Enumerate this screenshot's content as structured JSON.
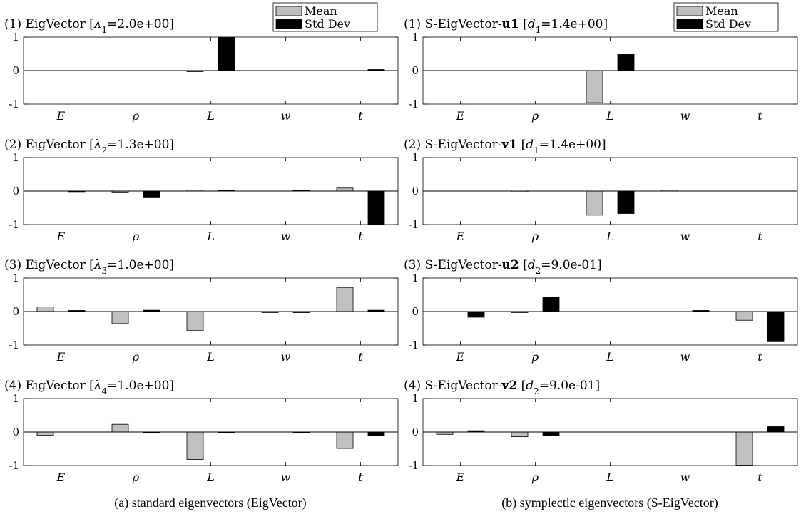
{
  "legend": {
    "mean_label": "Mean",
    "std_label": "Std Dev",
    "mean_color": "#c0c0c0",
    "std_color": "#000000"
  },
  "captions": {
    "left": "(a) standard eigenvectors (EigVector)",
    "right": "(b) symplectic eigenvectors (S-EigVector)"
  },
  "chart_data": [
    {
      "type": "bar",
      "column": 0,
      "row": 0,
      "title_parts": [
        {
          "t": "(1) EigVector ["
        },
        {
          "t": "λ",
          "i": true
        },
        {
          "t": "1",
          "sub": true
        },
        {
          "t": "=2.0e+00]"
        }
      ],
      "categories": [
        "E",
        "ρ",
        "L",
        "w",
        "t"
      ],
      "ylim": [
        -1,
        1
      ],
      "yticks": [
        1,
        0,
        -1
      ],
      "series": [
        {
          "name": "Mean",
          "values": [
            0,
            0,
            -0.03,
            0,
            0
          ]
        },
        {
          "name": "Std Dev",
          "values": [
            0,
            0,
            0.99,
            0,
            0.02
          ]
        }
      ]
    },
    {
      "type": "bar",
      "column": 0,
      "row": 1,
      "title_parts": [
        {
          "t": "(2) EigVector ["
        },
        {
          "t": "λ",
          "i": true
        },
        {
          "t": "2",
          "sub": true
        },
        {
          "t": "=1.3e+00]"
        }
      ],
      "categories": [
        "E",
        "ρ",
        "L",
        "w",
        "t"
      ],
      "ylim": [
        -1,
        1
      ],
      "yticks": [
        1,
        0,
        -1
      ],
      "series": [
        {
          "name": "Mean",
          "values": [
            0,
            -0.05,
            0.02,
            0,
            0.09
          ]
        },
        {
          "name": "Std Dev",
          "values": [
            -0.04,
            -0.2,
            0.02,
            0.02,
            -0.99
          ]
        }
      ]
    },
    {
      "type": "bar",
      "column": 0,
      "row": 2,
      "title_parts": [
        {
          "t": "(3) EigVector ["
        },
        {
          "t": "λ",
          "i": true
        },
        {
          "t": "3",
          "sub": true
        },
        {
          "t": "=1.0e+00]"
        }
      ],
      "categories": [
        "E",
        "ρ",
        "L",
        "w",
        "t"
      ],
      "ylim": [
        -1,
        1
      ],
      "yticks": [
        1,
        0,
        -1
      ],
      "series": [
        {
          "name": "Mean",
          "values": [
            0.14,
            -0.36,
            -0.57,
            -0.03,
            0.72
          ]
        },
        {
          "name": "Std Dev",
          "values": [
            0.02,
            0.04,
            0,
            -0.01,
            0.04
          ]
        }
      ]
    },
    {
      "type": "bar",
      "column": 0,
      "row": 3,
      "title_parts": [
        {
          "t": "(4) EigVector ["
        },
        {
          "t": "λ",
          "i": true
        },
        {
          "t": "4",
          "sub": true
        },
        {
          "t": "=1.0e+00]"
        }
      ],
      "categories": [
        "E",
        "ρ",
        "L",
        "w",
        "t"
      ],
      "ylim": [
        -1,
        1
      ],
      "yticks": [
        1,
        0,
        -1
      ],
      "series": [
        {
          "name": "Mean",
          "values": [
            -0.1,
            0.23,
            -0.82,
            0,
            -0.49
          ]
        },
        {
          "name": "Std Dev",
          "values": [
            0,
            -0.02,
            -0.02,
            -0.02,
            -0.1
          ]
        }
      ]
    },
    {
      "type": "bar",
      "column": 1,
      "row": 0,
      "title_parts": [
        {
          "t": "(1) S-EigVector-"
        },
        {
          "t": "u1",
          "b": true
        },
        {
          "t": " ["
        },
        {
          "t": "d",
          "i": true
        },
        {
          "t": "1",
          "sub": true
        },
        {
          "t": "=1.4e+00]"
        }
      ],
      "categories": [
        "E",
        "ρ",
        "L",
        "w",
        "t"
      ],
      "ylim": [
        -1,
        1
      ],
      "yticks": [
        1,
        0,
        -1
      ],
      "series": [
        {
          "name": "Mean",
          "values": [
            0,
            0,
            -0.96,
            0,
            0
          ]
        },
        {
          "name": "Std Dev",
          "values": [
            0,
            0,
            0.48,
            0,
            0
          ]
        }
      ]
    },
    {
      "type": "bar",
      "column": 1,
      "row": 1,
      "title_parts": [
        {
          "t": "(2) S-EigVector-"
        },
        {
          "t": "v1",
          "b": true
        },
        {
          "t": " ["
        },
        {
          "t": "d",
          "i": true
        },
        {
          "t": "1",
          "sub": true
        },
        {
          "t": "=1.4e+00]"
        }
      ],
      "categories": [
        "E",
        "ρ",
        "L",
        "w",
        "t"
      ],
      "ylim": [
        -1,
        1
      ],
      "yticks": [
        1,
        0,
        -1
      ],
      "series": [
        {
          "name": "Mean",
          "values": [
            0,
            -0.02,
            -0.72,
            0.02,
            0
          ]
        },
        {
          "name": "Std Dev",
          "values": [
            0,
            0,
            -0.67,
            0,
            0
          ]
        }
      ]
    },
    {
      "type": "bar",
      "column": 1,
      "row": 2,
      "title_parts": [
        {
          "t": "(3) S-EigVector-"
        },
        {
          "t": "u2",
          "b": true
        },
        {
          "t": " ["
        },
        {
          "t": "d",
          "i": true
        },
        {
          "t": "2",
          "sub": true
        },
        {
          "t": "=9.0e-01]"
        }
      ],
      "categories": [
        "E",
        "ρ",
        "L",
        "w",
        "t"
      ],
      "ylim": [
        -1,
        1
      ],
      "yticks": [
        1,
        0,
        -1
      ],
      "series": [
        {
          "name": "Mean",
          "values": [
            0,
            -0.02,
            0,
            0,
            -0.26
          ]
        },
        {
          "name": "Std Dev",
          "values": [
            -0.17,
            0.42,
            0,
            0.02,
            -0.9
          ]
        }
      ]
    },
    {
      "type": "bar",
      "column": 1,
      "row": 3,
      "title_parts": [
        {
          "t": "(4) S-EigVector-"
        },
        {
          "t": "v2",
          "b": true
        },
        {
          "t": " ["
        },
        {
          "t": "d",
          "i": true
        },
        {
          "t": "2",
          "sub": true
        },
        {
          "t": "=9.0e-01]"
        }
      ],
      "categories": [
        "E",
        "ρ",
        "L",
        "w",
        "t"
      ],
      "ylim": [
        -1,
        1
      ],
      "yticks": [
        1,
        0,
        -1
      ],
      "series": [
        {
          "name": "Mean",
          "values": [
            -0.07,
            -0.14,
            0,
            0,
            -0.99
          ]
        },
        {
          "name": "Std Dev",
          "values": [
            0.04,
            -0.1,
            0,
            0,
            0.16
          ]
        }
      ]
    }
  ]
}
